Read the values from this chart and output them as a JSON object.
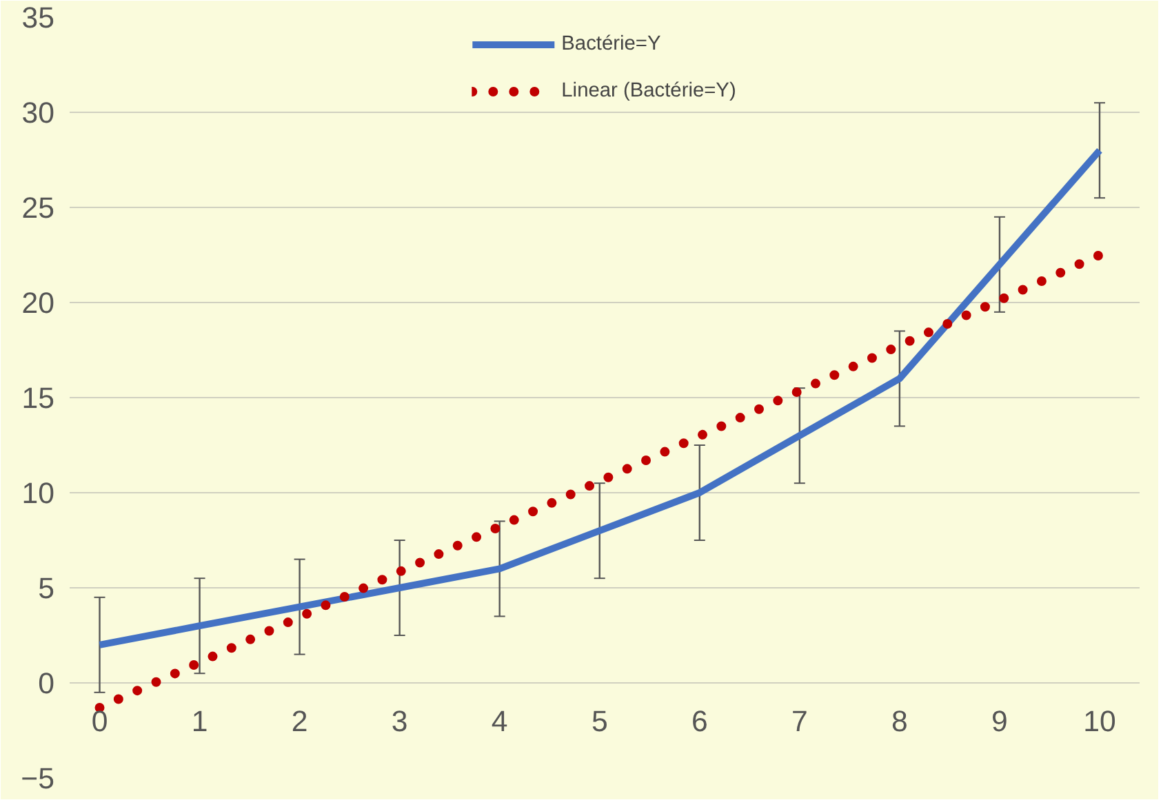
{
  "chart_data": {
    "type": "line",
    "x": [
      0,
      1,
      2,
      3,
      4,
      5,
      6,
      7,
      8,
      9,
      10
    ],
    "series": [
      {
        "name": "Bactérie=Y",
        "color": "#4472c4",
        "values": [
          2,
          3,
          4,
          5,
          6,
          8,
          10,
          13,
          16,
          22,
          28
        ],
        "errors": [
          2.5,
          2.5,
          2.5,
          2.5,
          2.5,
          2.5,
          2.5,
          2.5,
          2.5,
          2.5,
          2.5
        ],
        "line_style": "solid"
      },
      {
        "name": "Linear (Bactérie=Y)",
        "color": "#c00000",
        "x": [
          0,
          10
        ],
        "values": [
          -1.3,
          22.5
        ],
        "line_style": "dotted"
      }
    ],
    "xlim": [
      -0.3,
      10.4
    ],
    "xticks": [
      0,
      1,
      2,
      3,
      4,
      5,
      6,
      7,
      8,
      9,
      10
    ],
    "ylim": [
      -5,
      35
    ],
    "yticks": [
      -5,
      0,
      5,
      10,
      15,
      20,
      25,
      30,
      35
    ],
    "grid": "y",
    "legend": "top",
    "marker": "none"
  }
}
